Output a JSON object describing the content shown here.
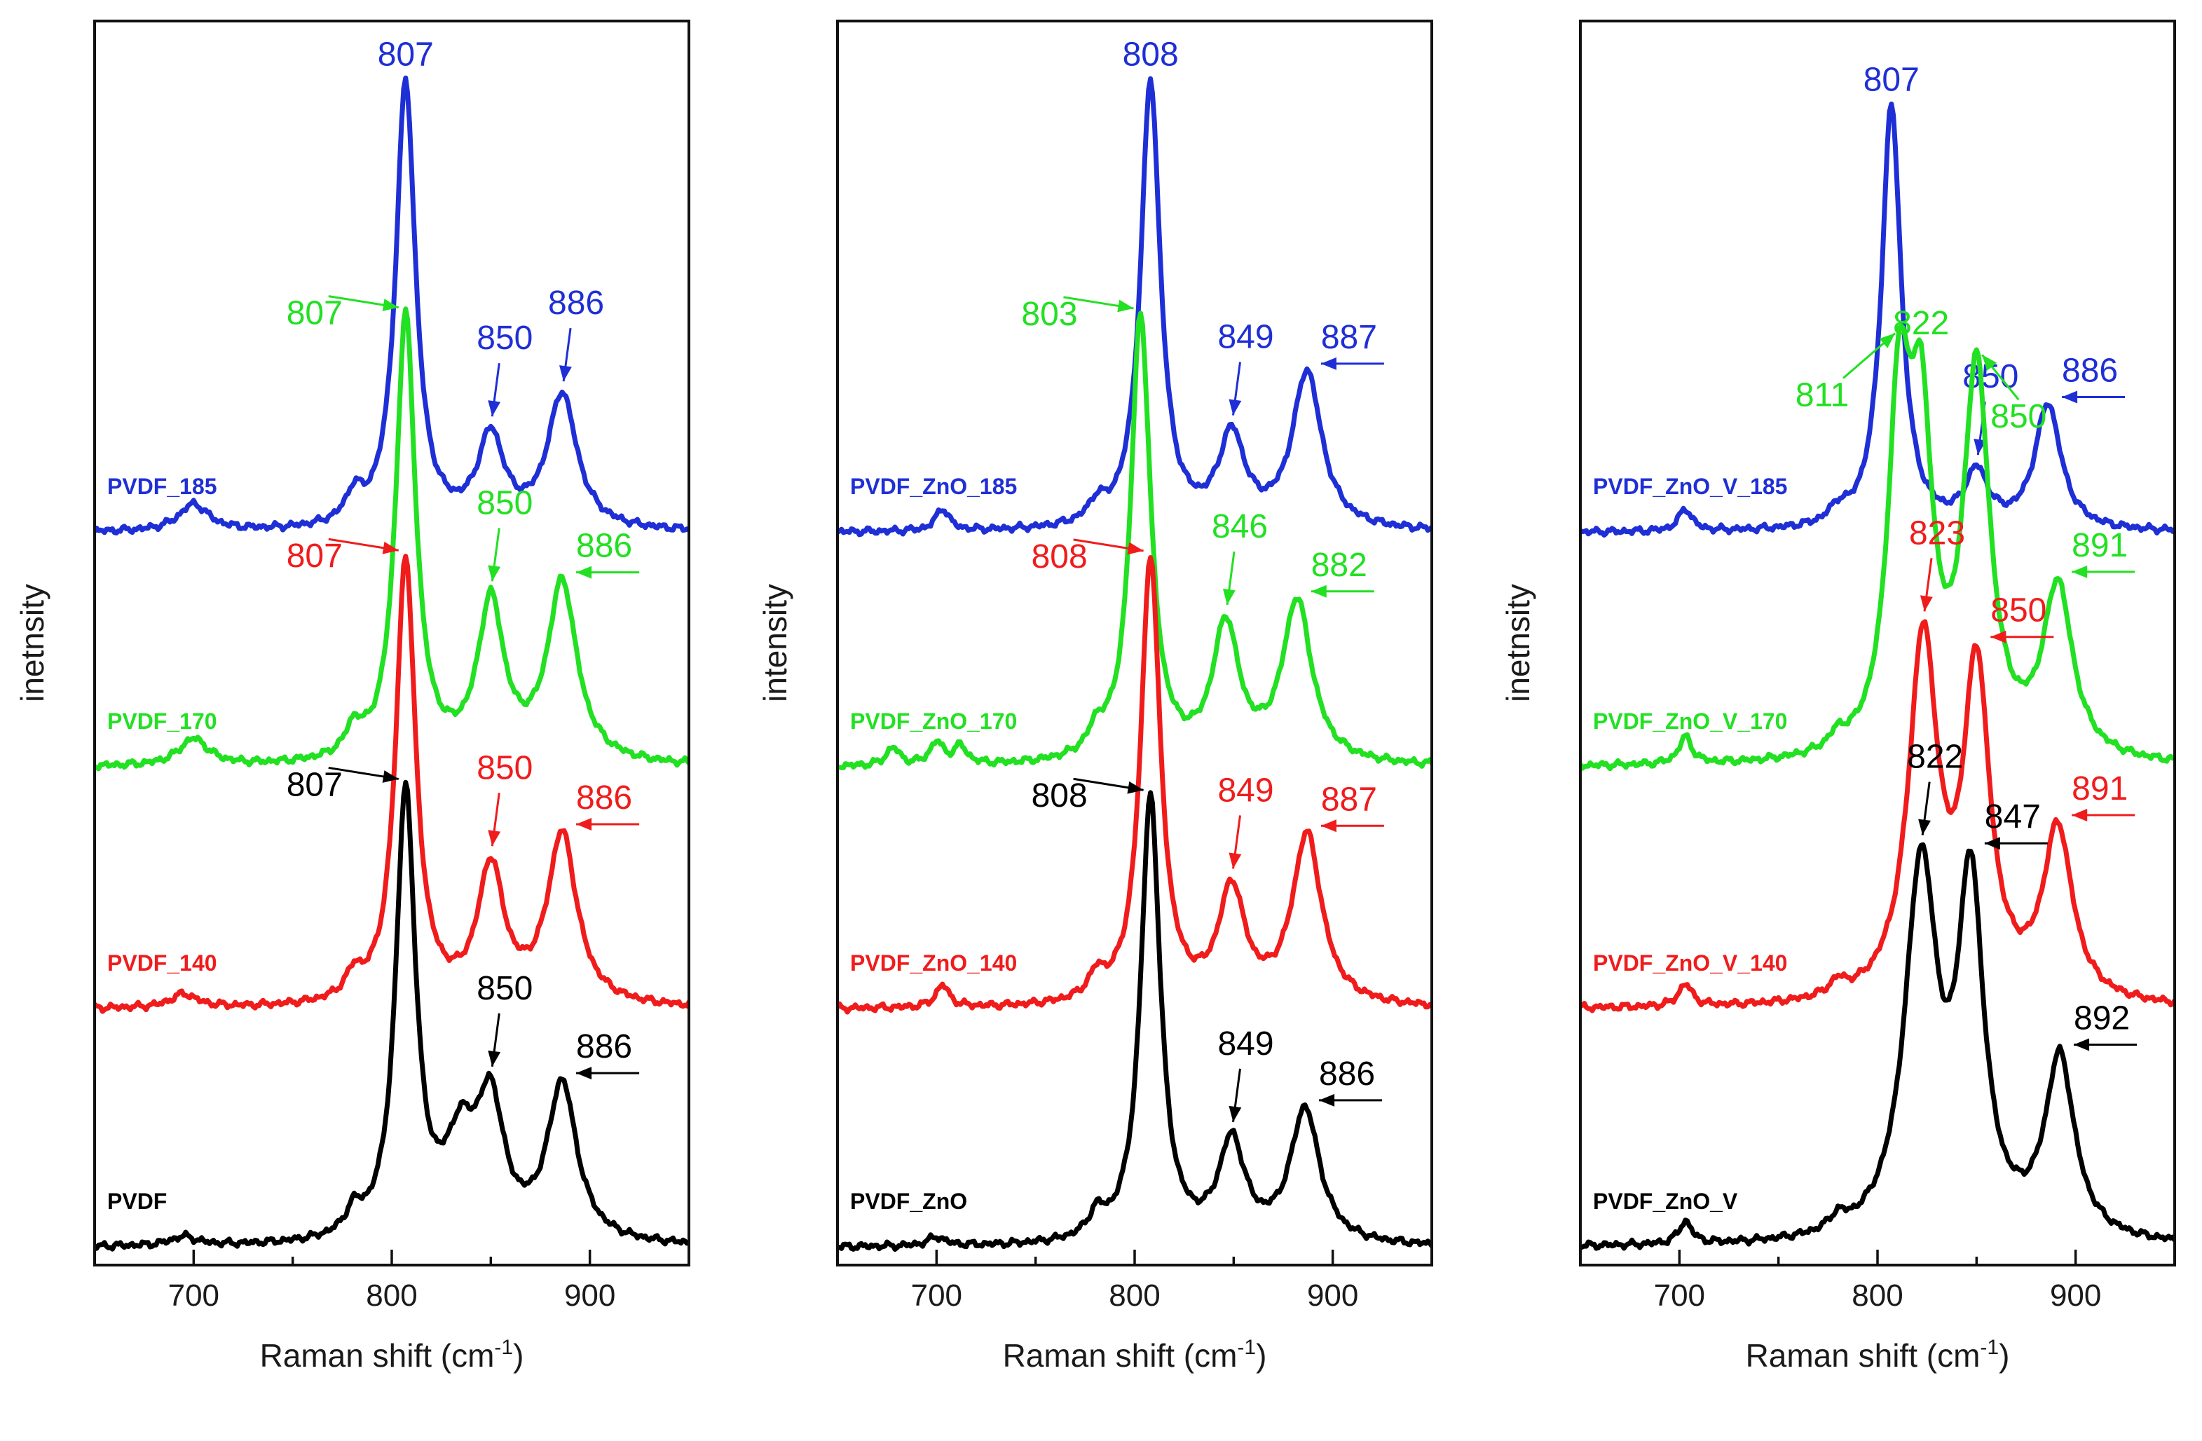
{
  "figure": {
    "colors": {
      "blue": "#1f2fd6",
      "green": "#22e022",
      "red": "#f01c1c",
      "black": "#000000"
    }
  },
  "chart_data": [
    {
      "type": "line",
      "xlabel": "Raman shift (cm",
      "xlabel_sup": "-1",
      "xlabel_close": ")",
      "ylabel": "inetnsity",
      "xlim": [
        650,
        950
      ],
      "xticks": [
        700,
        800,
        900
      ],
      "yticks_labeled": false,
      "series": [
        {
          "name": "PVDF_185",
          "color": "#1f2fd6",
          "offset": 3,
          "peaks": [
            {
              "pos": 700,
              "amp": 0.06,
              "w": 9
            },
            {
              "pos": 781,
              "amp": 0.06,
              "w": 5
            },
            {
              "pos": 807,
              "amp": 1.0,
              "w": 6
            },
            {
              "pos": 850,
              "amp": 0.2,
              "w": 8
            },
            {
              "pos": 886,
              "amp": 0.3,
              "w": 9
            }
          ],
          "annotations": [
            {
              "text": "807",
              "x": 807,
              "where": "above"
            },
            {
              "text": "850",
              "x": 850,
              "where": "arrow-down"
            },
            {
              "text": "886",
              "x": 886,
              "where": "arrow-down"
            }
          ]
        },
        {
          "name": "PVDF_170",
          "color": "#22e022",
          "offset": 2,
          "peaks": [
            {
              "pos": 700,
              "amp": 0.06,
              "w": 9
            },
            {
              "pos": 781,
              "amp": 0.06,
              "w": 5
            },
            {
              "pos": 807,
              "amp": 1.0,
              "w": 6
            },
            {
              "pos": 850,
              "amp": 0.35,
              "w": 8
            },
            {
              "pos": 886,
              "amp": 0.4,
              "w": 9
            }
          ],
          "annotations": [
            {
              "text": "807",
              "x": 807,
              "where": "arrow-left"
            },
            {
              "text": "850",
              "x": 850,
              "where": "arrow-down"
            },
            {
              "text": "886",
              "x": 886,
              "where": "arrow-side"
            }
          ]
        },
        {
          "name": "PVDF_140",
          "color": "#f01c1c",
          "offset": 1,
          "peaks": [
            {
              "pos": 695,
              "amp": 0.03,
              "w": 8
            },
            {
              "pos": 781,
              "amp": 0.05,
              "w": 5
            },
            {
              "pos": 807,
              "amp": 1.0,
              "w": 6
            },
            {
              "pos": 850,
              "amp": 0.3,
              "w": 8
            },
            {
              "pos": 886,
              "amp": 0.38,
              "w": 9
            }
          ],
          "annotations": [
            {
              "text": "807",
              "x": 807,
              "where": "arrow-left"
            },
            {
              "text": "850",
              "x": 850,
              "where": "arrow-down"
            },
            {
              "text": "886",
              "x": 886,
              "where": "arrow-side"
            }
          ]
        },
        {
          "name": "PVDF",
          "color": "#000000",
          "offset": 0,
          "peaks": [
            {
              "pos": 695,
              "amp": 0.02,
              "w": 8
            },
            {
              "pos": 781,
              "amp": 0.05,
              "w": 5
            },
            {
              "pos": 807,
              "amp": 1.0,
              "w": 6
            },
            {
              "pos": 835,
              "amp": 0.2,
              "w": 10
            },
            {
              "pos": 850,
              "amp": 0.28,
              "w": 8
            },
            {
              "pos": 886,
              "amp": 0.35,
              "w": 9
            }
          ],
          "annotations": [
            {
              "text": "807",
              "x": 807,
              "where": "arrow-left"
            },
            {
              "text": "850",
              "x": 850,
              "where": "arrow-down"
            },
            {
              "text": "886",
              "x": 886,
              "where": "arrow-side"
            }
          ]
        }
      ]
    },
    {
      "type": "line",
      "xlabel": "Raman shift (cm",
      "xlabel_sup": "-1",
      "xlabel_close": ")",
      "ylabel": "intensity",
      "xlim": [
        650,
        950
      ],
      "xticks": [
        700,
        800,
        900
      ],
      "yticks_labeled": false,
      "series": [
        {
          "name": "PVDF_ZnO_185",
          "color": "#1f2fd6",
          "offset": 3,
          "peaks": [
            {
              "pos": 703,
              "amp": 0.05,
              "w": 4
            },
            {
              "pos": 781,
              "amp": 0.04,
              "w": 5
            },
            {
              "pos": 808,
              "amp": 1.0,
              "w": 6
            },
            {
              "pos": 849,
              "amp": 0.2,
              "w": 8
            },
            {
              "pos": 887,
              "amp": 0.35,
              "w": 9
            }
          ],
          "annotations": [
            {
              "text": "808",
              "x": 808,
              "where": "above"
            },
            {
              "text": "849",
              "x": 849,
              "where": "arrow-down"
            },
            {
              "text": "887",
              "x": 887,
              "where": "arrow-side"
            }
          ]
        },
        {
          "name": "PVDF_ZnO_170",
          "color": "#22e022",
          "offset": 2,
          "peaks": [
            {
              "pos": 678,
              "amp": 0.04,
              "w": 4
            },
            {
              "pos": 700,
              "amp": 0.05,
              "w": 4
            },
            {
              "pos": 712,
              "amp": 0.04,
              "w": 4
            },
            {
              "pos": 781,
              "amp": 0.05,
              "w": 5
            },
            {
              "pos": 803,
              "amp": 1.0,
              "w": 6
            },
            {
              "pos": 846,
              "amp": 0.3,
              "w": 8
            },
            {
              "pos": 882,
              "amp": 0.36,
              "w": 9
            }
          ],
          "annotations": [
            {
              "text": "803",
              "x": 803,
              "where": "arrow-left"
            },
            {
              "text": "846",
              "x": 846,
              "where": "arrow-down"
            },
            {
              "text": "882",
              "x": 882,
              "where": "arrow-side"
            }
          ]
        },
        {
          "name": "PVDF_ZnO_140",
          "color": "#f01c1c",
          "offset": 1,
          "peaks": [
            {
              "pos": 703,
              "amp": 0.05,
              "w": 4
            },
            {
              "pos": 781,
              "amp": 0.05,
              "w": 5
            },
            {
              "pos": 808,
              "amp": 1.0,
              "w": 6
            },
            {
              "pos": 849,
              "amp": 0.25,
              "w": 8
            },
            {
              "pos": 887,
              "amp": 0.38,
              "w": 9
            }
          ],
          "annotations": [
            {
              "text": "808",
              "x": 808,
              "where": "arrow-left"
            },
            {
              "text": "849",
              "x": 849,
              "where": "arrow-down"
            },
            {
              "text": "887",
              "x": 887,
              "where": "arrow-side"
            }
          ]
        },
        {
          "name": "PVDF_ZnO",
          "color": "#000000",
          "offset": 0,
          "peaks": [
            {
              "pos": 700,
              "amp": 0.02,
              "w": 5
            },
            {
              "pos": 781,
              "amp": 0.05,
              "w": 5
            },
            {
              "pos": 808,
              "amp": 1.0,
              "w": 6
            },
            {
              "pos": 849,
              "amp": 0.22,
              "w": 8
            },
            {
              "pos": 886,
              "amp": 0.3,
              "w": 9
            }
          ],
          "annotations": [
            {
              "text": "808",
              "x": 808,
              "where": "arrow-left"
            },
            {
              "text": "849",
              "x": 849,
              "where": "arrow-down"
            },
            {
              "text": "886",
              "x": 886,
              "where": "arrow-side"
            }
          ]
        }
      ]
    },
    {
      "type": "line",
      "xlabel": "Raman shift (cm",
      "xlabel_sup": "-1",
      "xlabel_close": ")",
      "ylabel": "inetnsity",
      "xlim": [
        650,
        950
      ],
      "xticks": [
        700,
        800,
        900
      ],
      "yticks_labeled": false,
      "series": [
        {
          "name": "PVDF_ZnO_V_185",
          "color": "#1f2fd6",
          "offset": 3,
          "peaks": [
            {
              "pos": 703,
              "amp": 0.05,
              "w": 4
            },
            {
              "pos": 780,
              "amp": 0.03,
              "w": 5
            },
            {
              "pos": 807,
              "amp": 0.95,
              "w": 6
            },
            {
              "pos": 850,
              "amp": 0.12,
              "w": 7
            },
            {
              "pos": 886,
              "amp": 0.28,
              "w": 8
            }
          ],
          "annotations": [
            {
              "text": "807",
              "x": 807,
              "where": "above"
            },
            {
              "text": "850",
              "x": 850,
              "where": "arrow-down"
            },
            {
              "text": "886",
              "x": 886,
              "where": "arrow-side"
            }
          ]
        },
        {
          "name": "PVDF_ZnO_V_170",
          "color": "#22e022",
          "offset": 2,
          "peaks": [
            {
              "pos": 703,
              "amp": 0.06,
              "w": 4
            },
            {
              "pos": 780,
              "amp": 0.03,
              "w": 5
            },
            {
              "pos": 811,
              "amp": 0.75,
              "w": 7
            },
            {
              "pos": 822,
              "amp": 0.65,
              "w": 7
            },
            {
              "pos": 850,
              "amp": 0.85,
              "w": 8
            },
            {
              "pos": 891,
              "amp": 0.38,
              "w": 9
            }
          ],
          "annotations": [
            {
              "text": "811",
              "x": 811,
              "where": "arrow-up-left"
            },
            {
              "text": "822",
              "x": 822,
              "where": "above"
            },
            {
              "text": "850",
              "x": 850,
              "where": "arrow-up-right"
            },
            {
              "text": "891",
              "x": 891,
              "where": "arrow-side"
            }
          ]
        },
        {
          "name": "PVDF_ZnO_V_140",
          "color": "#f01c1c",
          "offset": 1,
          "peaks": [
            {
              "pos": 703,
              "amp": 0.05,
              "w": 4
            },
            {
              "pos": 780,
              "amp": 0.03,
              "w": 5
            },
            {
              "pos": 823,
              "amp": 0.8,
              "w": 9
            },
            {
              "pos": 850,
              "amp": 0.72,
              "w": 8
            },
            {
              "pos": 891,
              "amp": 0.38,
              "w": 9
            }
          ],
          "annotations": [
            {
              "text": "823",
              "x": 823,
              "where": "arrow-down"
            },
            {
              "text": "850",
              "x": 850,
              "where": "arrow-side"
            },
            {
              "text": "891",
              "x": 891,
              "where": "arrow-side"
            }
          ]
        },
        {
          "name": "PVDF_ZnO_V",
          "color": "#000000",
          "offset": 0,
          "peaks": [
            {
              "pos": 703,
              "amp": 0.05,
              "w": 4
            },
            {
              "pos": 780,
              "amp": 0.03,
              "w": 5
            },
            {
              "pos": 822,
              "amp": 0.82,
              "w": 10
            },
            {
              "pos": 847,
              "amp": 0.76,
              "w": 8
            },
            {
              "pos": 892,
              "amp": 0.4,
              "w": 9
            }
          ],
          "annotations": [
            {
              "text": "822",
              "x": 822,
              "where": "arrow-down"
            },
            {
              "text": "847",
              "x": 847,
              "where": "arrow-side"
            },
            {
              "text": "892",
              "x": 892,
              "where": "arrow-side"
            }
          ]
        }
      ]
    }
  ]
}
